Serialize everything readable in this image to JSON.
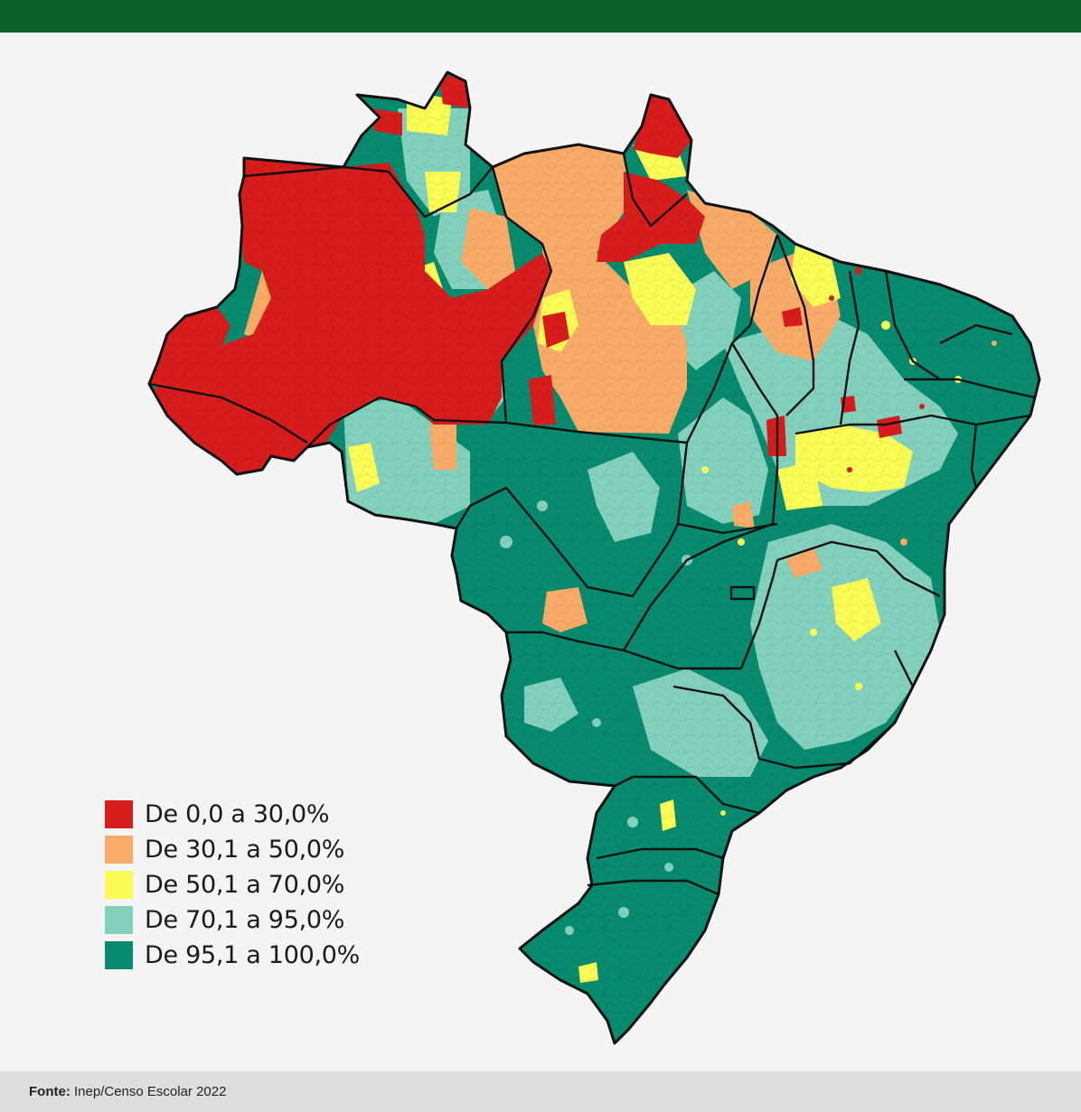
{
  "colors": {
    "header_bar": "#0b6129",
    "footer_bar": "#dedede",
    "background": "#f4f4f4",
    "border": "#111111"
  },
  "legend": {
    "items": [
      {
        "label": "De 0,0 a 30,0%",
        "color": "#d71c1c"
      },
      {
        "label": "De 30,1 a 50,0%",
        "color": "#f8ab66"
      },
      {
        "label": "De 50,1 a 70,0%",
        "color": "#fbfb55"
      },
      {
        "label": "De 70,1 a 95,0%",
        "color": "#83d0bd"
      },
      {
        "label": "De 95,1 a 100,0%",
        "color": "#078a6e"
      }
    ]
  },
  "source": {
    "label": "Fonte:",
    "text": " Inep/Censo Escolar 2022"
  }
}
